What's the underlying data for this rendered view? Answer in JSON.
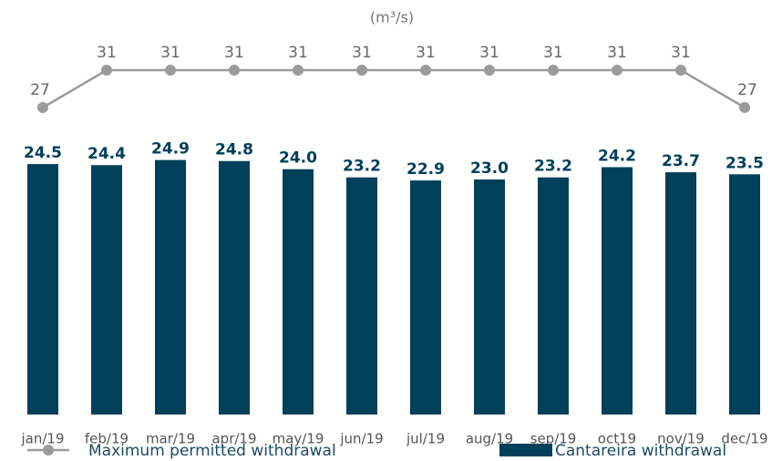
{
  "chart_data": {
    "type": "bar",
    "subtitle": "(m³/s)",
    "categories": [
      "jan/19",
      "feb/19",
      "mar/19",
      "apr/19",
      "may/19",
      "jun/19",
      "jul/19",
      "aug/19",
      "sep/19",
      "oct19",
      "nov/19",
      "dec/19"
    ],
    "series": [
      {
        "name": "Maximum permitted withdrawal",
        "type": "line",
        "color": "#9a9a9a",
        "values": [
          27,
          31,
          31,
          31,
          31,
          31,
          31,
          31,
          31,
          31,
          31,
          27
        ]
      },
      {
        "name": "Cantareira withdrawal",
        "type": "bar",
        "color": "#00405a",
        "values": [
          24.5,
          24.4,
          24.9,
          24.8,
          24.0,
          23.2,
          22.9,
          23.0,
          23.2,
          24.2,
          23.7,
          23.5
        ],
        "value_labels": [
          "24.5",
          "24.4",
          "24.9",
          "24.8",
          "24.0",
          "23.2",
          "22.9",
          "23.0",
          "23.2",
          "24.2",
          "23.7",
          "23.5"
        ]
      }
    ]
  }
}
